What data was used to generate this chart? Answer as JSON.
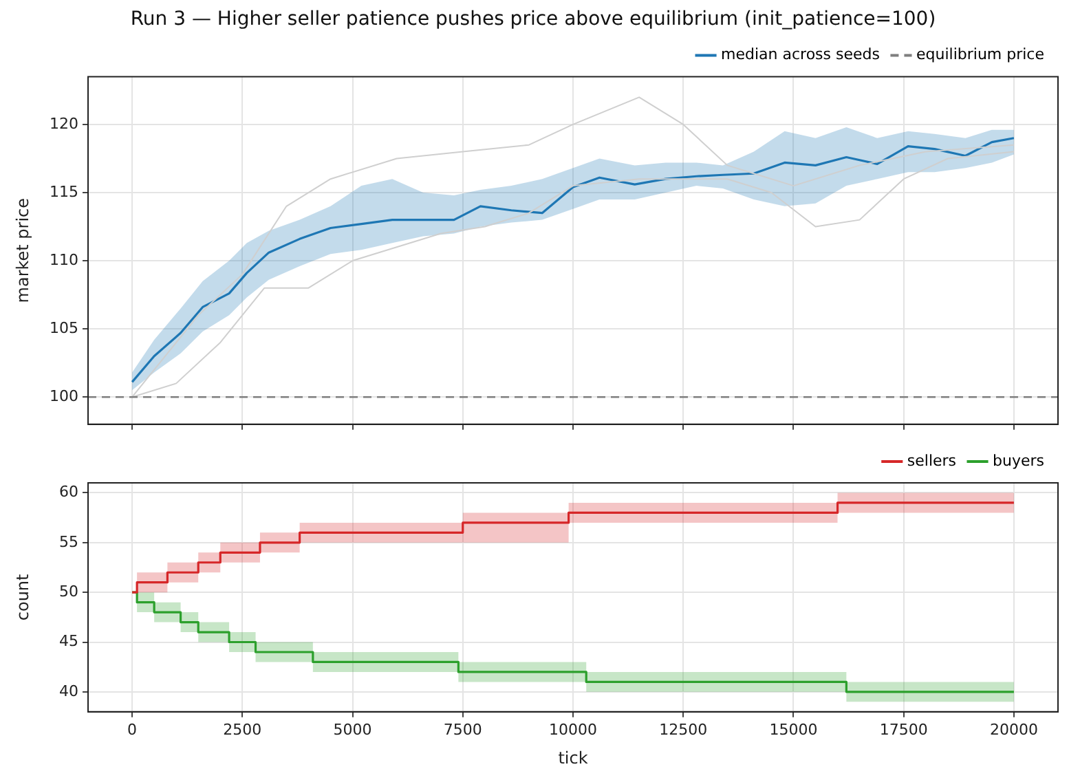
{
  "chart_data": [
    {
      "type": "line",
      "title": "Run 3 — Higher seller patience pushes price above equilibrium (init_patience=100)",
      "ylabel": "market price",
      "xlim": [
        -1000,
        21000
      ],
      "xticks": [
        0,
        2500,
        5000,
        7500,
        10000,
        12500,
        15000,
        17500,
        20000
      ],
      "ylim": [
        98,
        123.5
      ],
      "yticks": [
        100,
        105,
        110,
        115,
        120
      ],
      "grid": true,
      "legend": "top right",
      "tick_labels": "y",
      "marker": "none",
      "ref_lines": [
        {
          "axis": "y",
          "value": 100,
          "label": "equilibrium price",
          "color": "#7f7f7f",
          "line_style": "dashed"
        }
      ],
      "series": [
        {
          "color": "#cfcfcf",
          "x": [
            0,
            1500,
            2500,
            3500,
            4500,
            6000,
            7500,
            9000,
            10000,
            11500,
            12500,
            13500,
            15000,
            16500,
            18000,
            20000
          ],
          "values": [
            100,
            106,
            109,
            114,
            116,
            117.5,
            118,
            118.5,
            120,
            122,
            120,
            117,
            115.5,
            117,
            118,
            118.5
          ]
        },
        {
          "color": "#cfcfcf",
          "x": [
            0,
            1000,
            2000,
            3000,
            4000,
            5000,
            6000,
            7000,
            8000,
            9000,
            10000,
            11500,
            12500,
            13500,
            14500,
            15500,
            16500,
            17500,
            18500,
            20000
          ],
          "values": [
            100,
            101,
            104,
            108,
            108,
            110,
            111,
            112,
            112.5,
            113.5,
            115.5,
            116,
            116,
            116,
            115,
            112.5,
            113,
            116,
            117.5,
            118
          ]
        },
        {
          "name": "median across seeds",
          "color": "#1f77b4",
          "x": [
            0,
            500,
            1100,
            1600,
            2200,
            2600,
            3100,
            3800,
            4500,
            5200,
            5900,
            6600,
            7300,
            7900,
            8600,
            9300,
            10000,
            10600,
            11400,
            12100,
            12800,
            13400,
            14100,
            14800,
            15500,
            16200,
            16900,
            17600,
            18200,
            18900,
            19500,
            20000
          ],
          "values": [
            101.1,
            103.0,
            104.7,
            106.6,
            107.6,
            109.1,
            110.6,
            111.6,
            112.4,
            112.7,
            113.0,
            113.0,
            113.0,
            114.0,
            113.7,
            113.5,
            115.4,
            116.1,
            115.6,
            116.0,
            116.2,
            116.3,
            116.4,
            117.2,
            117.0,
            117.6,
            117.1,
            118.4,
            118.2,
            117.7,
            118.7,
            119.0
          ],
          "lower": [
            100.5,
            101.8,
            103.2,
            104.8,
            106.0,
            107.3,
            108.6,
            109.6,
            110.5,
            110.8,
            111.3,
            111.8,
            112.0,
            112.5,
            112.8,
            113.0,
            113.8,
            114.5,
            114.5,
            115.0,
            115.5,
            115.3,
            114.5,
            114.0,
            114.2,
            115.5,
            116.0,
            116.5,
            116.5,
            116.8,
            117.2,
            117.8
          ],
          "upper": [
            101.8,
            104.2,
            106.5,
            108.5,
            110.0,
            111.3,
            112.2,
            113.0,
            114.0,
            115.5,
            116.0,
            115.0,
            114.8,
            115.2,
            115.5,
            116.0,
            116.8,
            117.5,
            117.0,
            117.2,
            117.2,
            117.0,
            118.0,
            119.5,
            119.0,
            119.8,
            119.0,
            119.5,
            119.3,
            119.0,
            119.6,
            119.6
          ]
        }
      ]
    },
    {
      "type": "step",
      "xlabel": "tick",
      "ylabel": "count",
      "xlim": [
        -1000,
        21000
      ],
      "xticks": [
        0,
        2500,
        5000,
        7500,
        10000,
        12500,
        15000,
        17500,
        20000
      ],
      "ylim": [
        38,
        61
      ],
      "yticks": [
        40,
        45,
        50,
        55,
        60
      ],
      "grid": true,
      "legend": "top right",
      "marker": "none",
      "series": [
        {
          "name": "sellers",
          "color": "#d62728",
          "x": [
            0,
            110,
            800,
            1500,
            2000,
            2900,
            3800,
            7500,
            9900,
            16000,
            20000
          ],
          "values": [
            50,
            51,
            52,
            53,
            54,
            55,
            56,
            57,
            58,
            59,
            59
          ],
          "lower": [
            50,
            50,
            51,
            52,
            53,
            54,
            55,
            55,
            57,
            58,
            58
          ],
          "upper": [
            50,
            52,
            53,
            54,
            55,
            56,
            57,
            58,
            59,
            60,
            60
          ]
        },
        {
          "name": "buyers",
          "color": "#2ca02c",
          "x": [
            0,
            110,
            500,
            1100,
            1500,
            2200,
            2800,
            4100,
            7400,
            10300,
            16200,
            20000
          ],
          "values": [
            50,
            49,
            48,
            47,
            46,
            45,
            44,
            43,
            42,
            41,
            40,
            40
          ],
          "lower": [
            50,
            48,
            47,
            46,
            45,
            44,
            43,
            42,
            41,
            40,
            39,
            39
          ],
          "upper": [
            50,
            50,
            49,
            48,
            47,
            46,
            45,
            44,
            43,
            42,
            41,
            41
          ]
        }
      ]
    }
  ]
}
